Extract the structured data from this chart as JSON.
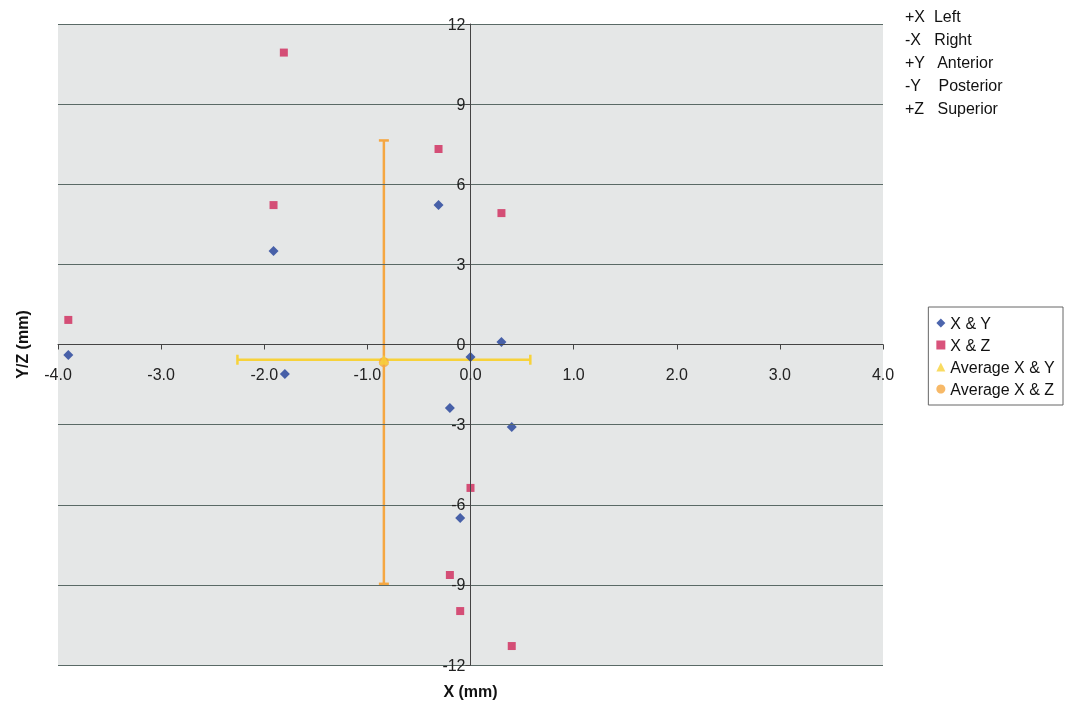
{
  "chart_data": {
    "type": "scatter",
    "xlabel": "X (mm)",
    "ylabel": "Y/Z (mm)",
    "annotations": [
      "+X  Left",
      "-X   Right",
      "+Y   Anterior",
      "-Y    Posterior",
      "+Z   Superior"
    ],
    "xlim": [
      -4,
      4
    ],
    "xticks": [
      {
        "value": -4,
        "label": "-4.0"
      },
      {
        "value": -3,
        "label": "-3.0"
      },
      {
        "value": -2,
        "label": "-2.0"
      },
      {
        "value": -1,
        "label": "-1.0"
      },
      {
        "value": 0,
        "label": "0.0"
      },
      {
        "value": 1,
        "label": "1.0"
      },
      {
        "value": 2,
        "label": "2.0"
      },
      {
        "value": 3,
        "label": "3.0"
      },
      {
        "value": 4,
        "label": "4.0"
      }
    ],
    "ylim": [
      -12,
      12
    ],
    "yticks": [
      -12,
      -9,
      -6,
      -3,
      0,
      3,
      6,
      9,
      12
    ],
    "grid": "y",
    "legend": "right",
    "series": [
      {
        "name": "X & Y",
        "color": "#1f3f99",
        "marker": "diamond",
        "x": [
          -3.9,
          -1.91,
          -1.8,
          -0.31,
          0.0,
          0.3,
          -0.2,
          0.4,
          -0.1
        ],
        "values": [
          -0.39,
          3.5,
          -1.1,
          5.22,
          -0.47,
          0.09,
          -2.38,
          -3.09,
          -6.5
        ]
      },
      {
        "name": "X & Z",
        "color": "#d0285a",
        "marker": "square",
        "x": [
          -3.9,
          -1.81,
          -1.91,
          -0.31,
          0.3,
          0.0,
          -0.2,
          -0.1,
          0.4
        ],
        "values": [
          0.92,
          10.93,
          5.22,
          7.32,
          4.92,
          -5.37,
          -8.63,
          -9.98,
          -11.29
        ]
      },
      {
        "name": "Average X & Y",
        "color": "#f7d23a",
        "marker": "triangle",
        "x": [
          -0.84
        ],
        "values": [
          -0.57
        ],
        "xerrors": [
          1.42
        ]
      },
      {
        "name": "Average X & Z",
        "color": "#f5a742",
        "marker": "circle",
        "x": [
          -0.84
        ],
        "values": [
          -0.66
        ],
        "errors": [
          8.3
        ]
      }
    ]
  }
}
